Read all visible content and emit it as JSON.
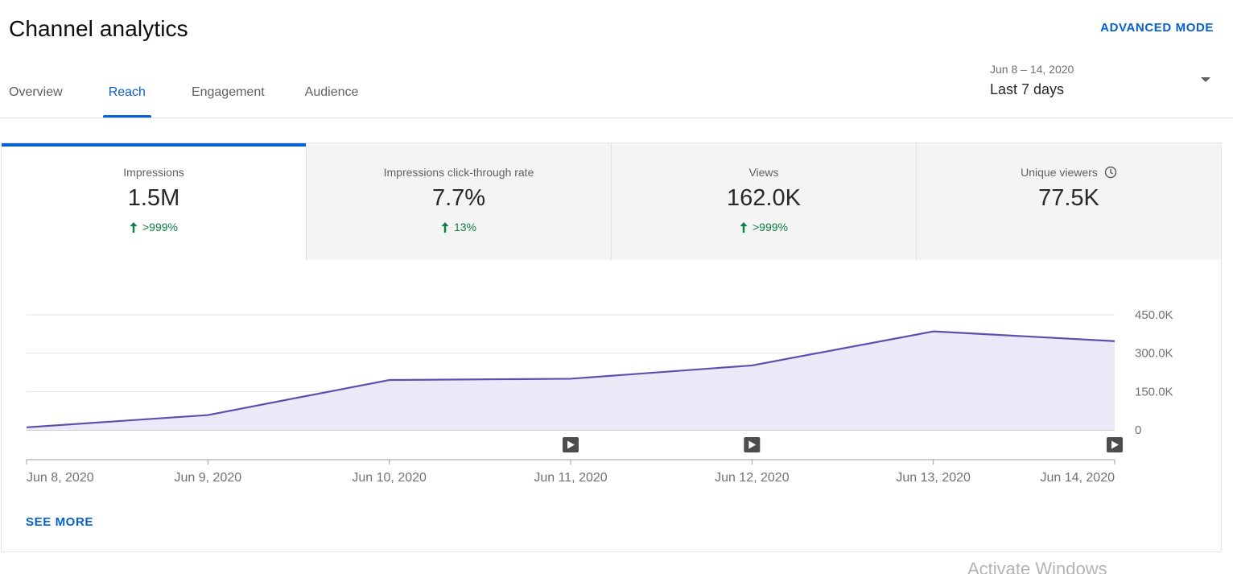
{
  "header": {
    "title": "Channel analytics",
    "advanced_mode_label": "ADVANCED MODE"
  },
  "tabs": [
    {
      "label": "Overview",
      "active": false
    },
    {
      "label": "Reach",
      "active": true
    },
    {
      "label": "Engagement",
      "active": false
    },
    {
      "label": "Audience",
      "active": false
    }
  ],
  "date_picker": {
    "range": "Jun 8 – 14, 2020",
    "preset": "Last 7 days"
  },
  "metrics": [
    {
      "label": "Impressions",
      "value": "1.5M",
      "change": ">999%",
      "active": true
    },
    {
      "label": "Impressions click-through rate",
      "value": "7.7%",
      "change": "13%",
      "active": false
    },
    {
      "label": "Views",
      "value": "162.0K",
      "change": ">999%",
      "active": false
    },
    {
      "label": "Unique viewers",
      "value": "77.5K",
      "change": "",
      "active": false,
      "icon": "clock-icon"
    }
  ],
  "chart_data": {
    "type": "area",
    "x": [
      "Jun 8, 2020",
      "Jun 9, 2020",
      "Jun 10, 2020",
      "Jun 11, 2020",
      "Jun 12, 2020",
      "Jun 13, 2020",
      "Jun 14, 2020"
    ],
    "series": [
      {
        "values": [
          10000,
          58000,
          195000,
          200000,
          252000,
          385000,
          347000
        ]
      }
    ],
    "y_ticks": [
      {
        "value": 0,
        "label": "0"
      },
      {
        "value": 150000,
        "label": "150.0K"
      },
      {
        "value": 300000,
        "label": "300.0K"
      },
      {
        "value": 450000,
        "label": "450.0K"
      }
    ],
    "ylim": [
      0,
      450000
    ],
    "grid": true,
    "video_markers": [
      "Jun 11, 2020",
      "Jun 12, 2020",
      "Jun 14, 2020"
    ],
    "line_color": "#5c4fad",
    "fill_color": "#ebe9f8"
  },
  "footer": {
    "see_more_label": "SEE MORE"
  },
  "watermark": {
    "text": "Activate Windows"
  },
  "colors": {
    "accent": "#065fd4",
    "positive": "#0b8043"
  }
}
